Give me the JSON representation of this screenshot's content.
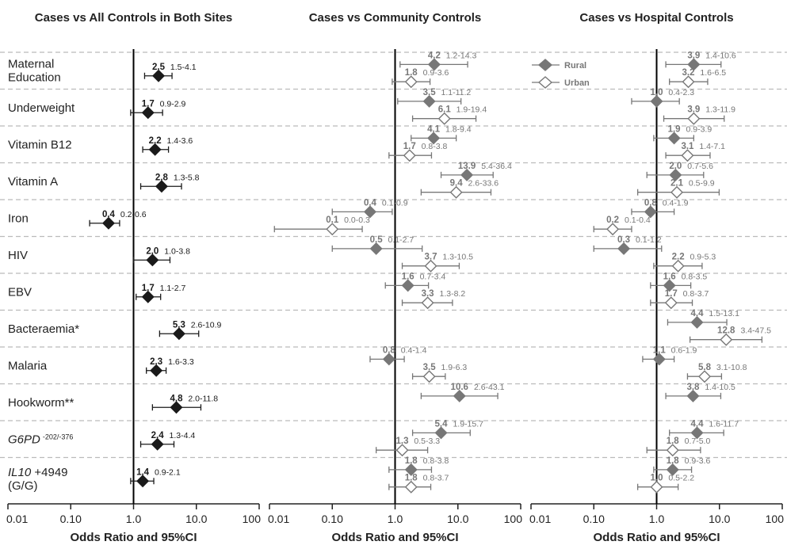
{
  "chart_data": {
    "type": "forest",
    "x_scale": "log",
    "xlim": [
      0.01,
      100
    ],
    "x_ticks": [
      "0.01",
      "0.10",
      "1.0",
      "10.0",
      "100"
    ],
    "reference_line": 1,
    "grid": "horizontal dashed separators",
    "categories": [
      {
        "label": "Maternal Education"
      },
      {
        "label": "Underweight"
      },
      {
        "label": "Vitamin B12"
      },
      {
        "label": "Vitamin A"
      },
      {
        "label": "Iron"
      },
      {
        "label": "HIV"
      },
      {
        "label": "EBV"
      },
      {
        "label": "Bacteraemia*"
      },
      {
        "label": "Malaria"
      },
      {
        "label": "Hookworm**"
      },
      {
        "label": "G6PD",
        "sup": "-202/-376",
        "italic": true
      },
      {
        "label": "IL10",
        "suffix": "+4949",
        "line2": "(G/G)",
        "italic": true
      }
    ],
    "panels": [
      {
        "title": "Cases vs All Controls in Both Sites",
        "xlabel": "Odds Ratio and 95%CI",
        "series": [
          {
            "name": "",
            "style": "black-diamond",
            "points": [
              {
                "or": 2.5,
                "lo": 1.5,
                "hi": 4.1,
                "or_text": "2.5",
                "ci_text": "1.5-4.1"
              },
              {
                "or": 1.7,
                "lo": 0.9,
                "hi": 2.9,
                "or_text": "1.7",
                "ci_text": "0.9-2.9"
              },
              {
                "or": 2.2,
                "lo": 1.4,
                "hi": 3.6,
                "or_text": "2.2",
                "ci_text": "1.4-3.6"
              },
              {
                "or": 2.8,
                "lo": 1.3,
                "hi": 5.8,
                "or_text": "2.8",
                "ci_text": "1.3-5.8"
              },
              {
                "or": 0.4,
                "lo": 0.2,
                "hi": 0.6,
                "or_text": "0.4",
                "ci_text": "0.2-0.6"
              },
              {
                "or": 2.0,
                "lo": 1.0,
                "hi": 3.8,
                "or_text": "2.0",
                "ci_text": "1.0-3.8"
              },
              {
                "or": 1.7,
                "lo": 1.1,
                "hi": 2.7,
                "or_text": "1.7",
                "ci_text": "1.1-2.7"
              },
              {
                "or": 5.3,
                "lo": 2.6,
                "hi": 10.9,
                "or_text": "5.3",
                "ci_text": "2.6-10.9"
              },
              {
                "or": 2.3,
                "lo": 1.6,
                "hi": 3.3,
                "or_text": "2.3",
                "ci_text": "1.6-3.3"
              },
              {
                "or": 4.8,
                "lo": 2.0,
                "hi": 11.8,
                "or_text": "4.8",
                "ci_text": "2.0-11.8"
              },
              {
                "or": 2.4,
                "lo": 1.3,
                "hi": 4.4,
                "or_text": "2.4",
                "ci_text": "1.3-4.4"
              },
              {
                "or": 1.4,
                "lo": 0.9,
                "hi": 2.1,
                "or_text": "1.4",
                "ci_text": "0.9-2.1"
              }
            ]
          }
        ]
      },
      {
        "title": "Cases vs Community Controls",
        "xlabel": "Odds Ratio and 95%CI",
        "series": [
          {
            "name": "Rural",
            "style": "grey-filled-diamond",
            "points": [
              {
                "or": 4.2,
                "lo": 1.2,
                "hi": 14.3,
                "or_text": "4.2",
                "ci_text": "1.2-14.3"
              },
              {
                "or": 3.5,
                "lo": 1.1,
                "hi": 11.2,
                "or_text": "3.5",
                "ci_text": "1.1-11.2"
              },
              {
                "or": 4.1,
                "lo": 1.8,
                "hi": 9.4,
                "or_text": "4.1",
                "ci_text": "1.8-9.4"
              },
              {
                "or": 13.9,
                "lo": 5.4,
                "hi": 36.4,
                "or_text": "13.9",
                "ci_text": "5.4-36.4"
              },
              {
                "or": 0.4,
                "lo": 0.1,
                "hi": 0.9,
                "or_text": "0.4",
                "ci_text": "0.1-0.9"
              },
              {
                "or": 0.5,
                "lo": 0.1,
                "hi": 2.7,
                "or_text": "0.5",
                "ci_text": "0.1-2.7"
              },
              {
                "or": 1.6,
                "lo": 0.7,
                "hi": 3.4,
                "or_text": "1.6",
                "ci_text": "0.7-3.4"
              },
              null,
              {
                "or": 0.8,
                "lo": 0.4,
                "hi": 1.4,
                "or_text": "0.8",
                "ci_text": "0.4-1.4"
              },
              {
                "or": 10.6,
                "lo": 2.6,
                "hi": 43.1,
                "or_text": "10.6",
                "ci_text": "2.6-43.1"
              },
              {
                "or": 5.4,
                "lo": 1.9,
                "hi": 15.7,
                "or_text": "5.4",
                "ci_text": "1.9-15.7"
              },
              {
                "or": 1.8,
                "lo": 0.8,
                "hi": 3.8,
                "or_text": "1.8",
                "ci_text": "0.8-3.8"
              }
            ]
          },
          {
            "name": "Urban",
            "style": "grey-open-diamond",
            "points": [
              {
                "or": 1.8,
                "lo": 0.9,
                "hi": 3.6,
                "or_text": "1.8",
                "ci_text": "0.9-3.6"
              },
              {
                "or": 6.1,
                "lo": 1.9,
                "hi": 19.4,
                "or_text": "6.1",
                "ci_text": "1.9-19.4"
              },
              {
                "or": 1.7,
                "lo": 0.8,
                "hi": 3.8,
                "or_text": "1.7",
                "ci_text": "0.8-3.8"
              },
              {
                "or": 9.4,
                "lo": 2.6,
                "hi": 33.6,
                "or_text": "9.4",
                "ci_text": "2.6-33.6"
              },
              {
                "or": 0.1,
                "lo": 0.0,
                "hi": 0.3,
                "or_text": "0.1",
                "ci_text": "0.0-0.3"
              },
              {
                "or": 3.7,
                "lo": 1.3,
                "hi": 10.5,
                "or_text": "3.7",
                "ci_text": "1.3-10.5"
              },
              {
                "or": 3.3,
                "lo": 1.3,
                "hi": 8.2,
                "or_text": "3.3",
                "ci_text": "1.3-8.2"
              },
              null,
              {
                "or": 3.5,
                "lo": 1.9,
                "hi": 6.3,
                "or_text": "3.5",
                "ci_text": "1.9-6.3"
              },
              null,
              {
                "or": 1.3,
                "lo": 0.5,
                "hi": 3.3,
                "or_text": "1.3",
                "ci_text": "0.5-3.3"
              },
              {
                "or": 1.8,
                "lo": 0.8,
                "hi": 3.7,
                "or_text": "1.8",
                "ci_text": "0.8-3.7"
              }
            ]
          }
        ]
      },
      {
        "title": "Cases vs Hospital Controls",
        "xlabel": "Odds Ratio and 95%CI",
        "legend": {
          "position": "top-left",
          "items": [
            "Rural",
            "Urban"
          ]
        },
        "series": [
          {
            "name": "Rural",
            "style": "grey-filled-diamond",
            "points": [
              {
                "or": 3.9,
                "lo": 1.4,
                "hi": 10.6,
                "or_text": "3.9",
                "ci_text": "1.4-10.6"
              },
              {
                "or": 1.0,
                "lo": 0.4,
                "hi": 2.3,
                "or_text": "1.0",
                "ci_text": "0.4-2.3"
              },
              {
                "or": 1.9,
                "lo": 0.9,
                "hi": 3.9,
                "or_text": "1.9",
                "ci_text": "0.9-3.9"
              },
              {
                "or": 2.0,
                "lo": 0.7,
                "hi": 5.6,
                "or_text": "2.0",
                "ci_text": "0.7-5.6"
              },
              {
                "or": 0.8,
                "lo": 0.4,
                "hi": 1.9,
                "or_text": "0.8",
                "ci_text": "0.4-1.9"
              },
              {
                "or": 0.3,
                "lo": 0.1,
                "hi": 1.2,
                "or_text": "0.3",
                "ci_text": "0.1-1.2"
              },
              {
                "or": 1.6,
                "lo": 0.8,
                "hi": 3.5,
                "or_text": "1.6",
                "ci_text": "0.8-3.5"
              },
              {
                "or": 4.4,
                "lo": 1.5,
                "hi": 13.1,
                "or_text": "4.4",
                "ci_text": "1.5-13.1"
              },
              {
                "or": 1.1,
                "lo": 0.6,
                "hi": 1.9,
                "or_text": "1.1",
                "ci_text": "0.6-1.9"
              },
              {
                "or": 3.8,
                "lo": 1.4,
                "hi": 10.5,
                "or_text": "3.8",
                "ci_text": "1.4-10.5"
              },
              {
                "or": 4.4,
                "lo": 1.6,
                "hi": 11.7,
                "or_text": "4.4",
                "ci_text": "1.6-11.7"
              },
              {
                "or": 1.8,
                "lo": 0.9,
                "hi": 3.6,
                "or_text": "1.8",
                "ci_text": "0.9-3.6"
              }
            ]
          },
          {
            "name": "Urban",
            "style": "grey-open-diamond",
            "points": [
              {
                "or": 3.2,
                "lo": 1.6,
                "hi": 6.5,
                "or_text": "3.2",
                "ci_text": "1.6-6.5"
              },
              {
                "or": 3.9,
                "lo": 1.3,
                "hi": 11.9,
                "or_text": "3.9",
                "ci_text": "1.3-11.9"
              },
              {
                "or": 3.1,
                "lo": 1.4,
                "hi": 7.1,
                "or_text": "3.1",
                "ci_text": "1.4-7.1"
              },
              {
                "or": 2.1,
                "lo": 0.5,
                "hi": 9.9,
                "or_text": "2.1",
                "ci_text": "0.5-9.9"
              },
              {
                "or": 0.2,
                "lo": 0.1,
                "hi": 0.4,
                "or_text": "0.2",
                "ci_text": "0.1-0.4"
              },
              {
                "or": 2.2,
                "lo": 0.9,
                "hi": 5.3,
                "or_text": "2.2",
                "ci_text": "0.9-5.3"
              },
              {
                "or": 1.7,
                "lo": 0.8,
                "hi": 3.7,
                "or_text": "1.7",
                "ci_text": "0.8-3.7"
              },
              {
                "or": 12.8,
                "lo": 3.4,
                "hi": 47.5,
                "or_text": "12.8",
                "ci_text": "3.4-47.5"
              },
              {
                "or": 5.8,
                "lo": 3.1,
                "hi": 10.8,
                "or_text": "5.8",
                "ci_text": "3.1-10.8"
              },
              null,
              {
                "or": 1.8,
                "lo": 0.7,
                "hi": 5.0,
                "or_text": "1.8",
                "ci_text": "0.7-5.0"
              },
              {
                "or": 1.0,
                "lo": 0.5,
                "hi": 2.2,
                "or_text": "1.0",
                "ci_text": "0.5-2.2"
              }
            ]
          }
        ]
      }
    ]
  },
  "colors": {
    "text": "#222222",
    "black_series": "#1a1a1a",
    "grey_series": "#777777",
    "open_fill": "#ffffff",
    "separator": "#bbbbbb",
    "reference_line": "#000000"
  }
}
